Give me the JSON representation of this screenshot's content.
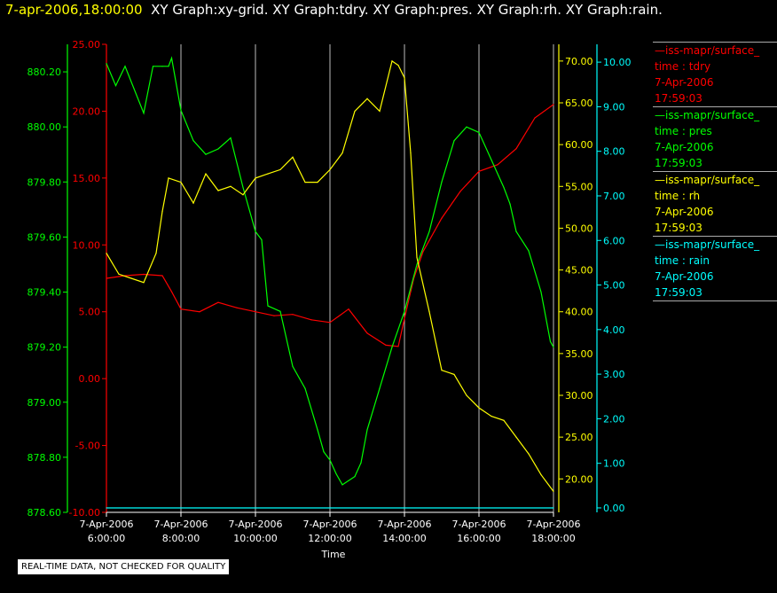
{
  "title": {
    "timestamp": "7-apr-2006,18:00:00",
    "graphs": "XY Graph:xy-grid.  XY Graph:tdry.  XY Graph:pres.  XY Graph:rh.  XY Graph:rain."
  },
  "legend": [
    {
      "source": "—iss-mapr/surface_",
      "label": "time : tdry",
      "date": "7-Apr-2006",
      "time": "17:59:03",
      "color": "#ff0000"
    },
    {
      "source": "—iss-mapr/surface_",
      "label": "time : pres",
      "date": "7-Apr-2006",
      "time": "17:59:03",
      "color": "#00ff00"
    },
    {
      "source": "—iss-mapr/surface_",
      "label": "time : rh",
      "date": "7-Apr-2006",
      "time": "17:59:03",
      "color": "#ffff00"
    },
    {
      "source": "—iss-mapr/surface_",
      "label": "time : rain",
      "date": "7-Apr-2006",
      "time": "17:59:03",
      "color": "#00ffff"
    }
  ],
  "disclaimer": "REAL-TIME DATA, NOT CHECKED FOR QUALITY",
  "chart_data": {
    "type": "line",
    "xlabel": "Time",
    "x_ticks": [
      {
        "date": "7-Apr-2006",
        "time": "6:00:00"
      },
      {
        "date": "7-Apr-2006",
        "time": "8:00:00"
      },
      {
        "date": "7-Apr-2006",
        "time": "10:00:00"
      },
      {
        "date": "7-Apr-2006",
        "time": "12:00:00"
      },
      {
        "date": "7-Apr-2006",
        "time": "14:00:00"
      },
      {
        "date": "7-Apr-2006",
        "time": "16:00:00"
      },
      {
        "date": "7-Apr-2006",
        "time": "18:00:00"
      }
    ],
    "xlim": [
      "6:00:00",
      "18:00:00"
    ],
    "grid": "vertical",
    "axes": [
      {
        "name": "pres",
        "color": "#00ff00",
        "ylim": [
          878.6,
          880.3
        ],
        "ticks": [
          "878.60",
          "878.80",
          "879.00",
          "879.20",
          "879.40",
          "879.60",
          "879.80",
          "880.00",
          "880.20"
        ]
      },
      {
        "name": "tdry",
        "color": "#ff0000",
        "ylim": [
          -10,
          25
        ],
        "ticks": [
          "-10.00",
          "-5.00",
          "0.00",
          "5.00",
          "10.00",
          "15.00",
          "20.00",
          "25.00"
        ]
      },
      {
        "name": "rh",
        "color": "#ffff00",
        "ylim": [
          16,
          72
        ],
        "ticks": [
          "20.00",
          "25.00",
          "30.00",
          "35.00",
          "40.00",
          "45.00",
          "50.00",
          "55.00",
          "60.00",
          "65.00",
          "70.00"
        ]
      },
      {
        "name": "rain",
        "color": "#00ffff",
        "ylim": [
          -0.1,
          10.4
        ],
        "ticks": [
          "0.00",
          "1.00",
          "2.00",
          "3.00",
          "4.00",
          "5.00",
          "6.00",
          "7.00",
          "8.00",
          "9.00",
          "10.00"
        ]
      }
    ],
    "series": [
      {
        "name": "tdry",
        "axis": "tdry",
        "color": "#ff0000",
        "x": [
          "6:00",
          "6:30",
          "7:00",
          "7:30",
          "7:45",
          "8:00",
          "8:30",
          "9:00",
          "9:30",
          "10:00",
          "10:30",
          "11:00",
          "11:30",
          "12:00",
          "12:30",
          "13:00",
          "13:30",
          "13:50",
          "14:00",
          "14:15",
          "14:30",
          "15:00",
          "15:30",
          "16:00",
          "16:30",
          "17:00",
          "17:30",
          "18:00"
        ],
        "values": [
          7.5,
          7.7,
          7.8,
          7.7,
          6.5,
          5.2,
          5.0,
          5.7,
          5.3,
          5.0,
          4.7,
          4.8,
          4.4,
          4.2,
          5.2,
          3.4,
          2.5,
          2.4,
          4.5,
          7.5,
          9.5,
          12.0,
          14.0,
          15.5,
          16.0,
          17.2,
          19.5,
          20.5
        ]
      },
      {
        "name": "pres",
        "axis": "pres",
        "color": "#00ff00",
        "x": [
          "6:00",
          "6:15",
          "6:30",
          "7:00",
          "7:15",
          "7:30",
          "7:40",
          "7:45",
          "8:00",
          "8:20",
          "8:40",
          "9:00",
          "9:20",
          "9:40",
          "10:00",
          "10:10",
          "10:20",
          "10:40",
          "11:00",
          "11:20",
          "11:40",
          "11:50",
          "12:00",
          "12:10",
          "12:20",
          "12:40",
          "12:50",
          "13:00",
          "13:20",
          "13:40",
          "14:00",
          "14:20",
          "14:40",
          "15:00",
          "15:20",
          "15:40",
          "16:00",
          "16:20",
          "16:40",
          "16:50",
          "17:00",
          "17:20",
          "17:40",
          "17:55",
          "18:00"
        ],
        "values": [
          880.23,
          880.15,
          880.22,
          880.05,
          880.22,
          880.22,
          880.22,
          880.25,
          880.06,
          879.95,
          879.9,
          879.92,
          879.96,
          879.78,
          879.62,
          879.59,
          879.35,
          879.33,
          879.13,
          879.05,
          878.9,
          878.82,
          878.79,
          878.74,
          878.7,
          878.73,
          878.78,
          878.9,
          879.05,
          879.2,
          879.33,
          879.5,
          879.62,
          879.8,
          879.95,
          880.0,
          879.98,
          879.88,
          879.78,
          879.72,
          879.62,
          879.55,
          879.4,
          879.22,
          879.2
        ]
      },
      {
        "name": "rh",
        "axis": "rh",
        "color": "#ffff00",
        "x": [
          "6:00",
          "6:20",
          "6:40",
          "7:00",
          "7:20",
          "7:30",
          "7:40",
          "8:00",
          "8:20",
          "8:40",
          "9:00",
          "9:20",
          "9:40",
          "10:00",
          "10:20",
          "10:40",
          "11:00",
          "11:20",
          "11:40",
          "12:00",
          "12:20",
          "12:40",
          "13:00",
          "13:20",
          "13:40",
          "13:50",
          "14:00",
          "14:10",
          "14:20",
          "14:40",
          "15:00",
          "15:20",
          "15:40",
          "16:00",
          "16:20",
          "16:40",
          "17:00",
          "17:20",
          "17:40",
          "18:00"
        ],
        "values": [
          47.0,
          44.5,
          44.0,
          43.5,
          47.0,
          52.0,
          56.0,
          55.5,
          53.0,
          56.5,
          54.5,
          55.0,
          54.0,
          56.0,
          56.5,
          57.0,
          58.5,
          55.5,
          55.5,
          57.0,
          59.0,
          64.0,
          65.5,
          64.0,
          70.0,
          69.5,
          68.0,
          59.0,
          46.5,
          40.0,
          33.0,
          32.5,
          30.0,
          28.5,
          27.5,
          27.0,
          25.0,
          23.0,
          20.5,
          18.5
        ]
      },
      {
        "name": "rain",
        "axis": "rain",
        "color": "#00ffff",
        "x": [
          "6:00",
          "18:00"
        ],
        "values": [
          0.0,
          0.0
        ]
      }
    ]
  }
}
